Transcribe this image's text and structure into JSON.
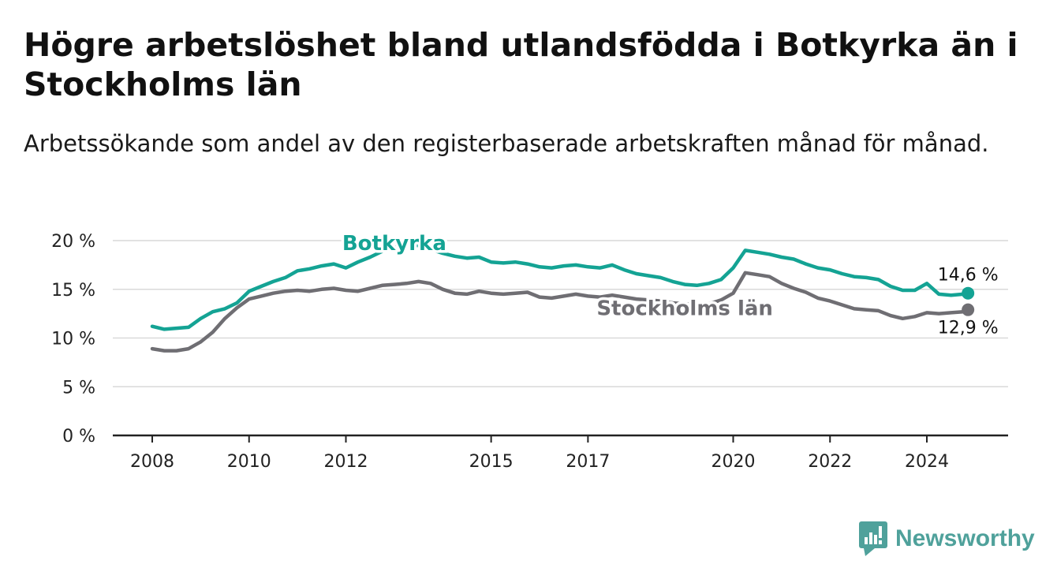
{
  "title": "Högre arbetslöshet bland utlandsfödda i Botkyrka än i Stockholms län",
  "subtitle": "Arbetssökande som andel av den registerbaserade arbetskraften månad för månad.",
  "brand": {
    "name": "Newsworthy",
    "color": "#4fa19b"
  },
  "chart_data": {
    "type": "line",
    "title": "Högre arbetslöshet bland utlandsfödda i Botkyrka än i Stockholms län",
    "subtitle": "Arbetssökande som andel av den registerbaserade arbetskraften månad för månad.",
    "y_ticks": [
      0,
      5,
      10,
      15,
      20
    ],
    "y_tick_labels": [
      "0 %",
      "5 %",
      "10 %",
      "15 %",
      "20 %"
    ],
    "ylim": [
      0,
      20
    ],
    "x_ticks": [
      2008,
      2010,
      2012,
      2015,
      2017,
      2020,
      2022,
      2024
    ],
    "x_tick_labels": [
      "2008",
      "2010",
      "2012",
      "2015",
      "2017",
      "2020",
      "2022",
      "2024"
    ],
    "xlim": [
      2007.6,
      2025.7
    ],
    "grid": true,
    "legend": "inline labels",
    "series": [
      {
        "name": "Botkyrka",
        "color": "#14a394",
        "end_label": "14,6 %",
        "x": [
          2008.0,
          2008.25,
          2008.5,
          2008.75,
          2009.0,
          2009.25,
          2009.5,
          2009.75,
          2010.0,
          2010.25,
          2010.5,
          2010.75,
          2011.0,
          2011.25,
          2011.5,
          2011.75,
          2012.0,
          2012.25,
          2012.5,
          2012.75,
          2013.0,
          2013.25,
          2013.5,
          2013.75,
          2014.0,
          2014.25,
          2014.5,
          2014.75,
          2015.0,
          2015.25,
          2015.5,
          2015.75,
          2016.0,
          2016.25,
          2016.5,
          2016.75,
          2017.0,
          2017.25,
          2017.5,
          2017.75,
          2018.0,
          2018.25,
          2018.5,
          2018.75,
          2019.0,
          2019.25,
          2019.5,
          2019.75,
          2020.0,
          2020.25,
          2020.5,
          2020.75,
          2021.0,
          2021.25,
          2021.5,
          2021.75,
          2022.0,
          2022.25,
          2022.5,
          2022.75,
          2023.0,
          2023.25,
          2023.5,
          2023.75,
          2024.0,
          2024.25,
          2024.5,
          2024.75,
          2024.85
        ],
        "y": [
          11.2,
          10.9,
          11.0,
          11.1,
          12.0,
          12.7,
          13.0,
          13.6,
          14.8,
          15.3,
          15.8,
          16.2,
          16.9,
          17.1,
          17.4,
          17.6,
          17.2,
          17.8,
          18.3,
          18.9,
          19.3,
          19.6,
          19.5,
          19.1,
          18.7,
          18.4,
          18.2,
          18.3,
          17.8,
          17.7,
          17.8,
          17.6,
          17.3,
          17.2,
          17.4,
          17.5,
          17.3,
          17.2,
          17.5,
          17.0,
          16.6,
          16.4,
          16.2,
          15.8,
          15.5,
          15.4,
          15.6,
          16.0,
          17.2,
          19.0,
          18.8,
          18.6,
          18.3,
          18.1,
          17.6,
          17.2,
          17.0,
          16.6,
          16.3,
          16.2,
          16.0,
          15.3,
          14.9,
          14.9,
          15.6,
          14.5,
          14.4,
          14.5,
          14.6
        ]
      },
      {
        "name": "Stockholms län",
        "color": "#6f6e73",
        "end_label": "12,9 %",
        "x": [
          2008.0,
          2008.25,
          2008.5,
          2008.75,
          2009.0,
          2009.25,
          2009.5,
          2009.75,
          2010.0,
          2010.25,
          2010.5,
          2010.75,
          2011.0,
          2011.25,
          2011.5,
          2011.75,
          2012.0,
          2012.25,
          2012.5,
          2012.75,
          2013.0,
          2013.25,
          2013.5,
          2013.75,
          2014.0,
          2014.25,
          2014.5,
          2014.75,
          2015.0,
          2015.25,
          2015.5,
          2015.75,
          2016.0,
          2016.25,
          2016.5,
          2016.75,
          2017.0,
          2017.25,
          2017.5,
          2017.75,
          2018.0,
          2018.25,
          2018.5,
          2018.75,
          2019.0,
          2019.25,
          2019.5,
          2019.75,
          2020.0,
          2020.25,
          2020.5,
          2020.75,
          2021.0,
          2021.25,
          2021.5,
          2021.75,
          2022.0,
          2022.25,
          2022.5,
          2022.75,
          2023.0,
          2023.25,
          2023.5,
          2023.75,
          2024.0,
          2024.25,
          2024.5,
          2024.75,
          2024.85
        ],
        "y": [
          8.9,
          8.7,
          8.7,
          8.9,
          9.6,
          10.6,
          12.0,
          13.1,
          14.0,
          14.3,
          14.6,
          14.8,
          14.9,
          14.8,
          15.0,
          15.1,
          14.9,
          14.8,
          15.1,
          15.4,
          15.5,
          15.6,
          15.8,
          15.6,
          15.0,
          14.6,
          14.5,
          14.8,
          14.6,
          14.5,
          14.6,
          14.7,
          14.2,
          14.1,
          14.3,
          14.5,
          14.3,
          14.2,
          14.4,
          14.2,
          14.0,
          13.9,
          13.8,
          13.6,
          13.5,
          13.4,
          13.5,
          13.9,
          14.6,
          16.7,
          16.5,
          16.3,
          15.6,
          15.1,
          14.7,
          14.1,
          13.8,
          13.4,
          13.0,
          12.9,
          12.8,
          12.3,
          12.0,
          12.2,
          12.6,
          12.5,
          12.6,
          12.7,
          12.9
        ]
      }
    ]
  }
}
